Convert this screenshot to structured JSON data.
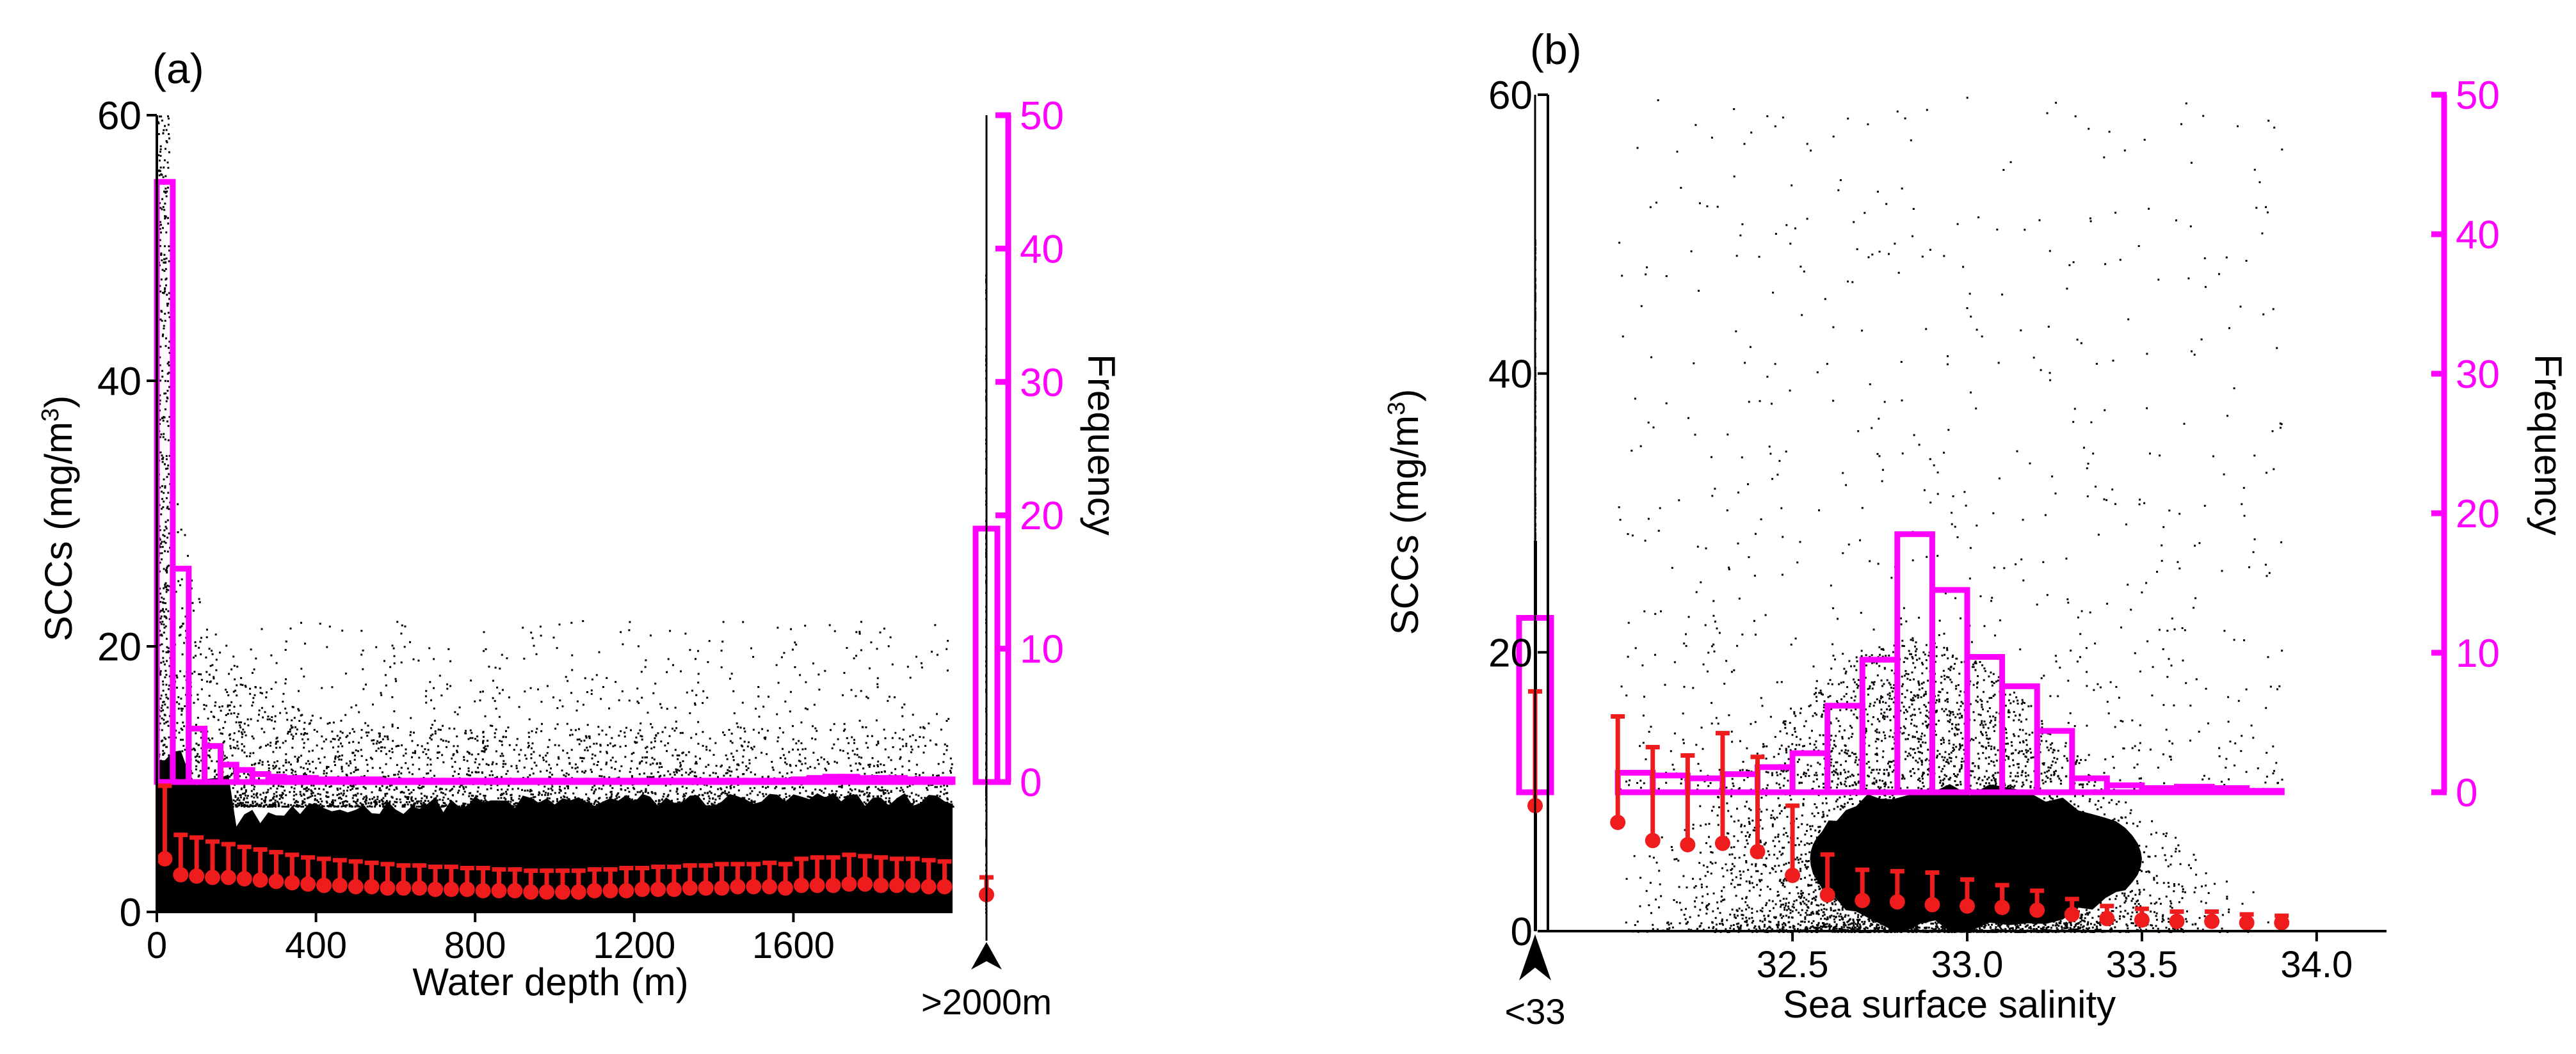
{
  "chart_data": [
    {
      "panel_label": "(a)",
      "type": "scatter",
      "xlabel": "Water depth (m)",
      "ylabel_left": "SCCs (mg/m",
      "ylabel_left_sup": "3",
      "ylabel_left_close": ")",
      "ylabel_right": "Frequency",
      "xlim": [
        0,
        2000
      ],
      "x_ticks": [
        0,
        400,
        800,
        1200,
        1600
      ],
      "x_tick_labels": [
        "0",
        "400",
        "800",
        "1200",
        "1600"
      ],
      "ylim_left": [
        0,
        60
      ],
      "y_left_ticks": [
        0,
        20,
        40,
        60
      ],
      "y_left_tick_labels": [
        "0",
        "20",
        "40",
        "60"
      ],
      "ylim_right": [
        0,
        50
      ],
      "y_right_ticks": [
        0,
        10,
        20,
        30,
        40,
        50
      ],
      "y_right_tick_labels": [
        "0",
        "10",
        "20",
        "30",
        "40",
        "50"
      ],
      "annotation": ">2000m",
      "histogram": {
        "bin_width": 40,
        "bins": [
          0,
          40,
          80,
          120,
          160,
          200,
          240,
          280,
          320,
          360,
          400,
          440,
          480,
          520,
          560,
          600,
          640,
          680,
          720,
          760,
          800,
          840,
          880,
          920,
          960,
          1000,
          1040,
          1080,
          1120,
          1160,
          1200,
          1240,
          1280,
          1320,
          1360,
          1400,
          1440,
          1480,
          1520,
          1560,
          1600,
          1640,
          1680,
          1720,
          1760,
          1800,
          1840,
          1880,
          1920,
          1960
        ],
        "frequency": [
          45,
          16,
          4,
          2.7,
          1.3,
          0.9,
          0.6,
          0.4,
          0.3,
          0.3,
          0.2,
          0.2,
          0.2,
          0.2,
          0.1,
          0.1,
          0.1,
          0.1,
          0.1,
          0.1,
          0.1,
          0.1,
          0.1,
          0.1,
          0.1,
          0.1,
          0.1,
          0.1,
          0.1,
          0.1,
          0.1,
          0.1,
          0.1,
          0.1,
          0.1,
          0.1,
          0.1,
          0.1,
          0.1,
          0.1,
          0.2,
          0.3,
          0.4,
          0.4,
          0.3,
          0.3,
          0.3,
          0.2,
          0.2,
          0.2
        ],
        "outside_bar": 19
      },
      "medians": {
        "x": [
          20,
          60,
          100,
          140,
          180,
          220,
          260,
          300,
          340,
          380,
          420,
          460,
          500,
          540,
          580,
          620,
          660,
          700,
          740,
          780,
          820,
          860,
          900,
          940,
          980,
          1020,
          1060,
          1100,
          1140,
          1180,
          1220,
          1260,
          1300,
          1340,
          1380,
          1420,
          1460,
          1500,
          1540,
          1580,
          1620,
          1660,
          1700,
          1740,
          1780,
          1820,
          1860,
          1900,
          1940,
          1980
        ],
        "median": [
          4.0,
          2.8,
          2.7,
          2.6,
          2.6,
          2.5,
          2.4,
          2.3,
          2.2,
          2.1,
          2.0,
          2.0,
          1.9,
          1.9,
          1.8,
          1.8,
          1.8,
          1.7,
          1.7,
          1.7,
          1.6,
          1.6,
          1.6,
          1.5,
          1.5,
          1.5,
          1.5,
          1.6,
          1.6,
          1.6,
          1.7,
          1.7,
          1.7,
          1.8,
          1.8,
          1.8,
          1.9,
          1.9,
          1.9,
          1.8,
          2.0,
          2.0,
          2.0,
          2.1,
          2.1,
          2.0,
          2.0,
          2.0,
          1.9,
          1.9
        ],
        "upper": [
          9.5,
          5.8,
          5.6,
          5.3,
          5.1,
          4.9,
          4.7,
          4.5,
          4.3,
          4.1,
          4.0,
          3.9,
          3.8,
          3.7,
          3.6,
          3.5,
          3.5,
          3.4,
          3.4,
          3.3,
          3.3,
          3.2,
          3.2,
          3.1,
          3.1,
          3.1,
          3.1,
          3.2,
          3.2,
          3.3,
          3.3,
          3.4,
          3.4,
          3.5,
          3.5,
          3.6,
          3.6,
          3.6,
          3.7,
          3.6,
          4.0,
          4.1,
          4.1,
          4.3,
          4.2,
          4.1,
          4.0,
          4.0,
          3.9,
          3.8
        ],
        "outside_median": 1.3,
        "outside_upper": 2.6
      }
    },
    {
      "panel_label": "(b)",
      "type": "scatter",
      "xlabel": "Sea surface salinity",
      "ylabel_left": "SCCs (mg/m",
      "ylabel_left_sup": "3",
      "ylabel_left_close": ")",
      "ylabel_right": "Frequency",
      "xlim": [
        31.8,
        34.2
      ],
      "x_ticks": [
        32.5,
        33.0,
        33.5,
        34.0
      ],
      "x_tick_labels": [
        "32.5",
        "33.0",
        "33.5",
        "34.0"
      ],
      "ylim_left": [
        0,
        60
      ],
      "y_left_ticks": [
        0,
        20,
        40,
        60
      ],
      "y_left_tick_labels": [
        "0",
        "20",
        "40",
        "60"
      ],
      "ylim_right": [
        0,
        50
      ],
      "y_right_ticks": [
        0,
        10,
        20,
        30,
        40,
        50
      ],
      "y_right_tick_labels": [
        "0",
        "10",
        "20",
        "30",
        "40",
        "50"
      ],
      "annotation": "<33",
      "histogram": {
        "bin_width": 0.1,
        "bins": [
          32.0,
          32.1,
          32.2,
          32.3,
          32.4,
          32.5,
          32.6,
          32.7,
          32.8,
          32.9,
          33.0,
          33.1,
          33.2,
          33.3,
          33.4,
          33.5,
          33.6,
          33.7,
          33.8
        ],
        "frequency": [
          1.4,
          1.2,
          1.0,
          1.3,
          1.8,
          2.8,
          6.2,
          9.5,
          18.5,
          14.5,
          9.7,
          7.6,
          4.4,
          1.0,
          0.5,
          0.3,
          0.4,
          0.3,
          0.1
        ],
        "outside_bar": 12.5
      },
      "medians": {
        "x": [
          32.0,
          32.1,
          32.2,
          32.3,
          32.4,
          32.5,
          32.6,
          32.7,
          32.8,
          32.9,
          33.0,
          33.1,
          33.2,
          33.3,
          33.4,
          33.5,
          33.6,
          33.7,
          33.8,
          33.9
        ],
        "median": [
          7.8,
          6.5,
          6.2,
          6.3,
          5.7,
          4.0,
          2.6,
          2.2,
          2.1,
          1.9,
          1.8,
          1.7,
          1.5,
          1.2,
          0.9,
          0.8,
          0.7,
          0.7,
          0.6,
          0.6
        ],
        "upper": [
          15.4,
          13.2,
          12.6,
          14.2,
          12.5,
          9.0,
          5.5,
          4.4,
          4.3,
          4.2,
          3.7,
          3.3,
          2.9,
          2.3,
          1.8,
          1.6,
          1.4,
          1.4,
          1.2,
          1.1
        ],
        "outside_median": 9.0,
        "outside_upper": 17.2
      }
    }
  ]
}
